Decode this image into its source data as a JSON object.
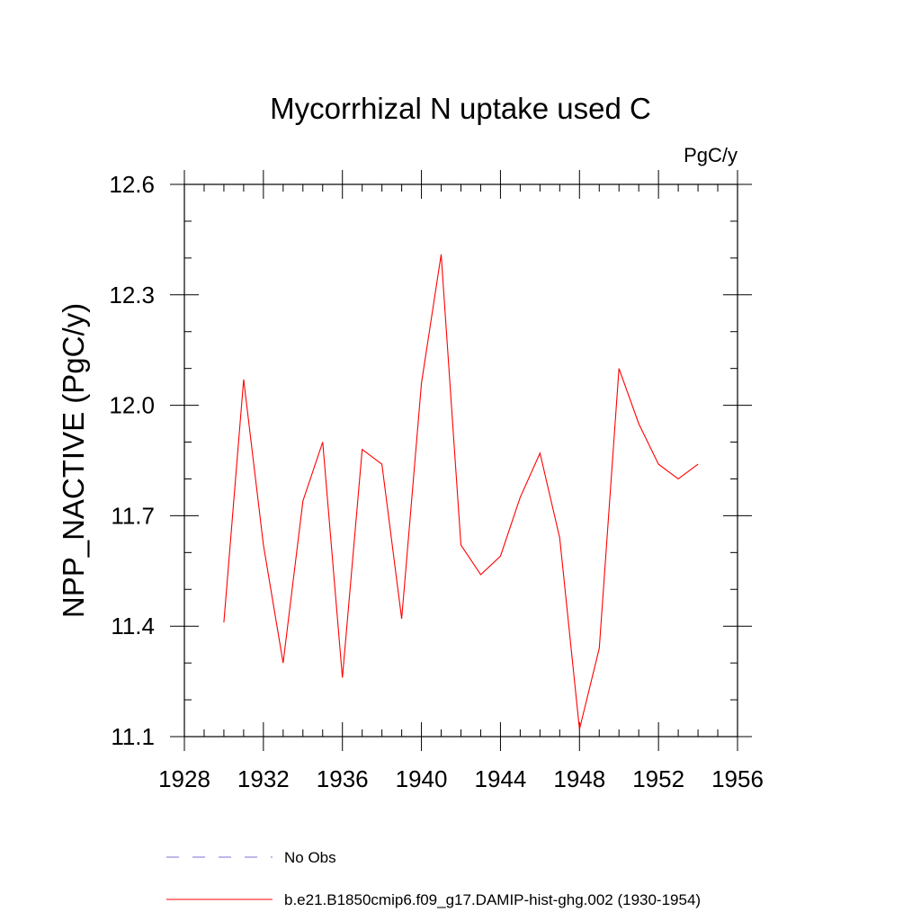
{
  "chart_data": {
    "type": "line",
    "title": "Mycorrhizal N uptake used C",
    "units_label": "PgC/y",
    "ylabel": "NPP_NACTIVE  (PgC/y)",
    "xlabel": "",
    "xlim": [
      1928,
      1956
    ],
    "ylim": [
      11.1,
      12.6
    ],
    "x_ticks": [
      1928,
      1932,
      1936,
      1940,
      1944,
      1948,
      1952,
      1956
    ],
    "x_minor_step": 1,
    "y_ticks": [
      11.1,
      11.4,
      11.7,
      12.0,
      12.3,
      12.6
    ],
    "y_tick_labels": [
      "11.1",
      "11.4",
      "11.7",
      "12.0",
      "12.3",
      "12.6"
    ],
    "y_minor_step": 0.1,
    "grid": false,
    "legend_position": "bottom",
    "series": [
      {
        "name": "b.e21.B1850cmip6.f09_g17.DAMIP-hist-ghg.002 (1930-1954)",
        "color": "#ff0000",
        "dash": "solid",
        "x": [
          1930,
          1931,
          1932,
          1933,
          1934,
          1935,
          1936,
          1937,
          1938,
          1939,
          1940,
          1941,
          1942,
          1943,
          1944,
          1945,
          1946,
          1947,
          1948,
          1949,
          1950,
          1951,
          1952,
          1953,
          1954
        ],
        "values": [
          11.41,
          12.07,
          11.62,
          11.3,
          11.74,
          11.9,
          11.26,
          11.88,
          11.84,
          11.42,
          12.06,
          12.41,
          11.62,
          11.54,
          11.59,
          11.75,
          11.87,
          11.64,
          11.12,
          11.34,
          12.1,
          11.95,
          11.84,
          11.8,
          11.84
        ]
      }
    ],
    "legend": [
      {
        "label": "No Obs",
        "color": "#7b6fd6",
        "dash": "dashed"
      },
      {
        "label": "b.e21.B1850cmip6.f09_g17.DAMIP-hist-ghg.002 (1930-1954)",
        "color": "#ff0000",
        "dash": "solid"
      }
    ]
  }
}
